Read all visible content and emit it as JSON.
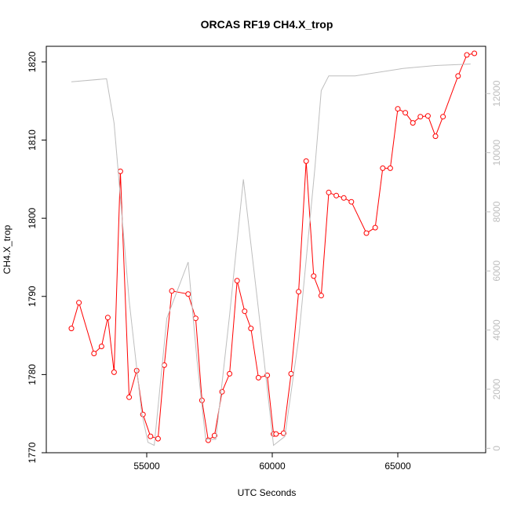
{
  "chart_data": {
    "type": "line",
    "title": "ORCAS RF19 CH4.X_trop",
    "xlabel": "UTC Seconds",
    "ylabel": "CH4.X_trop",
    "xlim": [
      51000,
      68500
    ],
    "ylim": [
      1770,
      1822
    ],
    "y2lim": [
      -150,
      13600
    ],
    "x_ticks": [
      55000,
      60000,
      65000
    ],
    "y_ticks": [
      1770,
      1780,
      1790,
      1800,
      1810,
      1820
    ],
    "y2_ticks": [
      0,
      2000,
      4000,
      6000,
      8000,
      10000,
      12000
    ],
    "grid": false,
    "legend": "none",
    "series": [
      {
        "axis": "left",
        "color": "#ff0000",
        "marker": "circle",
        "points": [
          [
            52000,
            1785.9
          ],
          [
            52300,
            1789.2
          ],
          [
            52900,
            1782.7
          ],
          [
            53200,
            1783.6
          ],
          [
            53450,
            1787.3
          ],
          [
            53700,
            1780.3
          ],
          [
            53950,
            1806.0
          ],
          [
            54300,
            1777.1
          ],
          [
            54600,
            1780.5
          ],
          [
            54850,
            1774.9
          ],
          [
            55150,
            1772.1
          ],
          [
            55450,
            1771.8
          ],
          [
            55700,
            1781.2
          ],
          [
            56000,
            1790.7
          ],
          [
            56650,
            1790.3
          ],
          [
            56950,
            1787.2
          ],
          [
            57200,
            1776.7
          ],
          [
            57450,
            1771.6
          ],
          [
            57700,
            1772.2
          ],
          [
            58000,
            1777.8
          ],
          [
            58300,
            1780.1
          ],
          [
            58600,
            1792.0
          ],
          [
            58900,
            1788.1
          ],
          [
            59150,
            1785.9
          ],
          [
            59450,
            1779.6
          ],
          [
            59800,
            1779.9
          ],
          [
            60050,
            1772.4
          ],
          [
            60150,
            1772.4
          ],
          [
            60450,
            1772.5
          ],
          [
            60750,
            1780.1
          ],
          [
            61050,
            1790.6
          ],
          [
            61350,
            1807.3
          ],
          [
            61650,
            1792.6
          ],
          [
            61950,
            1790.1
          ],
          [
            62250,
            1803.3
          ],
          [
            62550,
            1802.9
          ],
          [
            62850,
            1802.6
          ],
          [
            63150,
            1802.1
          ],
          [
            63750,
            1798.1
          ],
          [
            64100,
            1798.8
          ],
          [
            64400,
            1806.4
          ],
          [
            64700,
            1806.4
          ],
          [
            65000,
            1814.0
          ],
          [
            65300,
            1813.5
          ],
          [
            65600,
            1812.2
          ],
          [
            65900,
            1813.0
          ],
          [
            66200,
            1813.1
          ],
          [
            66500,
            1810.5
          ],
          [
            66800,
            1813.0
          ],
          [
            67400,
            1818.2
          ],
          [
            67750,
            1820.9
          ],
          [
            68050,
            1821.1
          ]
        ]
      },
      {
        "axis": "right",
        "color": "#bebebe",
        "marker": "none",
        "points": [
          [
            52000,
            12400
          ],
          [
            53400,
            12500
          ],
          [
            53700,
            11000
          ],
          [
            54300,
            5000
          ],
          [
            54800,
            1200
          ],
          [
            55050,
            200
          ],
          [
            55300,
            100
          ],
          [
            55800,
            4400
          ],
          [
            56650,
            6300
          ],
          [
            57000,
            3000
          ],
          [
            57350,
            300
          ],
          [
            57750,
            300
          ],
          [
            58300,
            4500
          ],
          [
            58850,
            9100
          ],
          [
            59450,
            4700
          ],
          [
            60050,
            100
          ],
          [
            60500,
            400
          ],
          [
            61050,
            3700
          ],
          [
            61700,
            9500
          ],
          [
            61950,
            12100
          ],
          [
            62250,
            12600
          ],
          [
            63300,
            12600
          ],
          [
            65200,
            12850
          ],
          [
            66500,
            12950
          ],
          [
            67900,
            13000
          ]
        ]
      }
    ]
  }
}
